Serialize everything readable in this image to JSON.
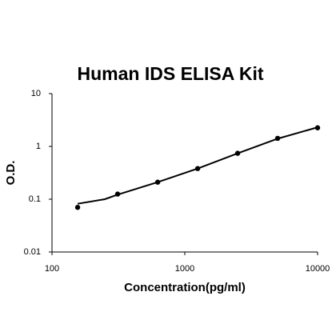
{
  "chart_data": {
    "type": "scatter",
    "title": "Human IDS ELISA Kit",
    "x_label": "Concentration(pg/ml)",
    "y_label": "O.D.",
    "xscale": "log",
    "yscale": "log",
    "xlim": [
      100,
      10000
    ],
    "ylim": [
      0.01,
      10
    ],
    "xticks": [
      100,
      1000,
      10000
    ],
    "yticks": [
      0.01,
      0.1,
      1,
      10
    ],
    "series": [
      {
        "mode": "markers",
        "color": "#000000",
        "x": [
          156,
          312,
          625,
          1250,
          2500,
          5000,
          10000
        ],
        "values": [
          0.07,
          0.125,
          0.21,
          0.38,
          0.74,
          1.42,
          2.25
        ]
      },
      {
        "mode": "line",
        "color": "#000000",
        "x": [
          156,
          250,
          312,
          625,
          1250,
          2500,
          5000,
          10000
        ],
        "values": [
          0.082,
          0.1,
          0.122,
          0.21,
          0.38,
          0.74,
          1.4,
          2.3
        ]
      }
    ]
  }
}
